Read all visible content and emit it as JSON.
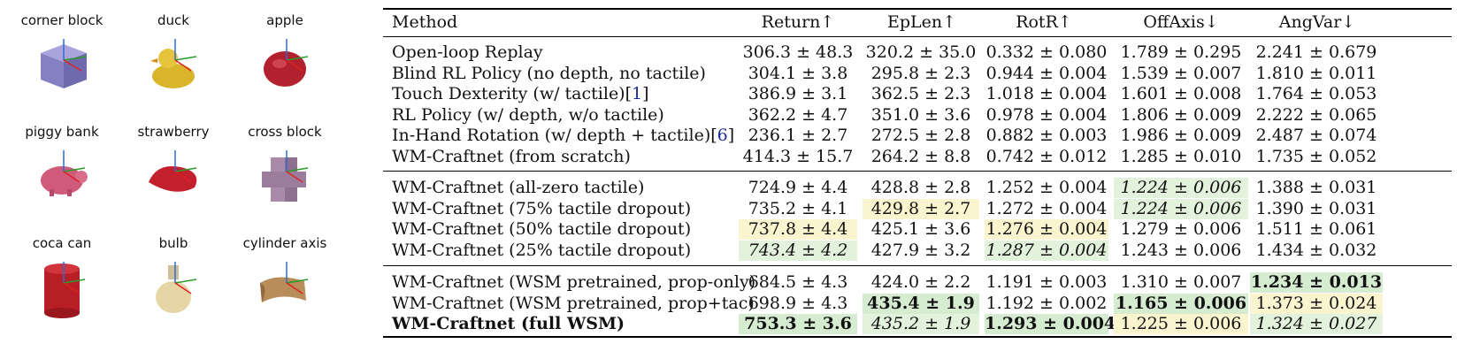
{
  "objects": [
    {
      "label": "corner block",
      "icon": "corner-block-icon",
      "color": "#8a85c6"
    },
    {
      "label": "duck",
      "icon": "duck-icon",
      "color": "#e3c13a"
    },
    {
      "label": "apple",
      "icon": "apple-icon",
      "color": "#b3212e"
    },
    {
      "label": "piggy bank",
      "icon": "piggy-bank-icon",
      "color": "#cf5a7a"
    },
    {
      "label": "strawberry",
      "icon": "strawberry-icon",
      "color": "#c3202d"
    },
    {
      "label": "cross block",
      "icon": "cross-block-icon",
      "color": "#a98aa9"
    },
    {
      "label": "coca can",
      "icon": "coca-can-icon",
      "color": "#b81e26"
    },
    {
      "label": "bulb",
      "icon": "bulb-icon",
      "color": "#e6d6a5"
    },
    {
      "label": "cylinder axis",
      "icon": "cylinder-axis-icon",
      "color": "#b88d5a"
    }
  ],
  "table": {
    "headers": [
      "Method",
      "Return↑",
      "EpLen↑",
      "RotR↑",
      "OffAxis↓",
      "AngVar↓"
    ],
    "groups": [
      [
        {
          "method": "Open-loop Replay",
          "cite": "",
          "cells": [
            {
              "v": "306.3 ± 48.3"
            },
            {
              "v": "320.2 ± 35.0"
            },
            {
              "v": "0.332 ± 0.080"
            },
            {
              "v": "1.789 ± 0.295"
            },
            {
              "v": "2.241 ± 0.679"
            }
          ]
        },
        {
          "method": "Blind RL Policy (no depth, no tactile)",
          "cite": "",
          "cells": [
            {
              "v": "304.1 ± 3.8"
            },
            {
              "v": "295.8 ± 2.3"
            },
            {
              "v": "0.944 ± 0.004"
            },
            {
              "v": "1.539 ± 0.007"
            },
            {
              "v": "1.810 ± 0.011"
            }
          ]
        },
        {
          "method": "Touch Dexterity (w/ tactile)[",
          "cite": "1",
          "close": "]",
          "cells": [
            {
              "v": "386.9 ± 3.1"
            },
            {
              "v": "362.5 ± 2.3"
            },
            {
              "v": "1.018 ± 0.004"
            },
            {
              "v": "1.601 ± 0.008"
            },
            {
              "v": "1.764 ± 0.053"
            }
          ]
        },
        {
          "method": "RL Policy (w/ depth, w/o tactile)",
          "cite": "",
          "cells": [
            {
              "v": "362.2 ± 4.7"
            },
            {
              "v": "351.0 ± 3.6"
            },
            {
              "v": "0.978 ± 0.004"
            },
            {
              "v": "1.806 ± 0.009"
            },
            {
              "v": "2.222 ± 0.065"
            }
          ]
        },
        {
          "method": "In-Hand Rotation (w/ depth + tactile)[",
          "cite": "6",
          "close": "]",
          "cells": [
            {
              "v": "236.1 ± 2.7"
            },
            {
              "v": "272.5 ± 2.8"
            },
            {
              "v": "0.882 ± 0.003"
            },
            {
              "v": "1.986 ± 0.009"
            },
            {
              "v": "2.487 ± 0.074"
            }
          ]
        },
        {
          "method": "WM-Craftnet (from scratch)",
          "cite": "",
          "cells": [
            {
              "v": "414.3 ± 15.7"
            },
            {
              "v": "264.2 ± 8.8"
            },
            {
              "v": "0.742 ± 0.012"
            },
            {
              "v": "1.285 ± 0.010"
            },
            {
              "v": "1.735 ± 0.052"
            }
          ]
        }
      ],
      [
        {
          "method": "WM-Craftnet (all-zero tactile)",
          "cite": "",
          "cells": [
            {
              "v": "724.9 ± 4.4"
            },
            {
              "v": "428.8 ± 2.8"
            },
            {
              "v": "1.252 ± 0.004"
            },
            {
              "v": "1.224 ± 0.006",
              "style": "ital lgreen"
            },
            {
              "v": "1.388 ± 0.031"
            }
          ]
        },
        {
          "method": "WM-Craftnet (75% tactile dropout)",
          "cite": "",
          "cells": [
            {
              "v": "735.2 ± 4.1"
            },
            {
              "v": "429.8 ± 2.7",
              "style": "yellow"
            },
            {
              "v": "1.272 ± 0.004"
            },
            {
              "v": "1.224 ± 0.006",
              "style": "ital lgreen"
            },
            {
              "v": "1.390 ± 0.031"
            }
          ]
        },
        {
          "method": "WM-Craftnet (50% tactile dropout)",
          "cite": "",
          "cells": [
            {
              "v": "737.8 ± 4.4",
              "style": "yellow"
            },
            {
              "v": "425.1 ± 3.6"
            },
            {
              "v": "1.276 ± 0.004",
              "style": "yellow"
            },
            {
              "v": "1.279 ± 0.006"
            },
            {
              "v": "1.511 ± 0.061"
            }
          ]
        },
        {
          "method": "WM-Craftnet (25% tactile dropout)",
          "cite": "",
          "cells": [
            {
              "v": "743.4 ± 4.2",
              "style": "ital lgreen"
            },
            {
              "v": "427.9 ± 3.2"
            },
            {
              "v": "1.287 ± 0.004",
              "style": "ital lgreen"
            },
            {
              "v": "1.243 ± 0.006"
            },
            {
              "v": "1.434 ± 0.032"
            }
          ]
        }
      ],
      [
        {
          "method": "WM-Craftnet (WSM pretrained, prop-only)",
          "cite": "",
          "cells": [
            {
              "v": "684.5 ± 4.3"
            },
            {
              "v": "424.0 ± 2.2"
            },
            {
              "v": "1.191 ± 0.003"
            },
            {
              "v": "1.310 ± 0.007"
            },
            {
              "v": "1.234 ± 0.013",
              "style": "bold green"
            }
          ]
        },
        {
          "method": "WM-Craftnet (WSM pretrained, prop+tac)",
          "cite": "",
          "cells": [
            {
              "v": "698.9 ± 4.3"
            },
            {
              "v": "435.4 ± 1.9",
              "style": "bold green"
            },
            {
              "v": "1.192 ± 0.002"
            },
            {
              "v": "1.165 ± 0.006",
              "style": "bold green"
            },
            {
              "v": "1.373 ± 0.024",
              "style": "yellow"
            }
          ]
        },
        {
          "method": "WM-Craftnet (full WSM)",
          "cite": "",
          "bold": true,
          "cells": [
            {
              "v": "753.3 ± 3.6",
              "style": "bold green"
            },
            {
              "v": "435.2 ± 1.9",
              "style": "ital lgreen"
            },
            {
              "v": "1.293 ± 0.004",
              "style": "bold green"
            },
            {
              "v": "1.225 ± 0.006",
              "style": "yellow"
            },
            {
              "v": "1.324 ± 0.027",
              "style": "ital lgreen"
            }
          ]
        }
      ]
    ]
  }
}
